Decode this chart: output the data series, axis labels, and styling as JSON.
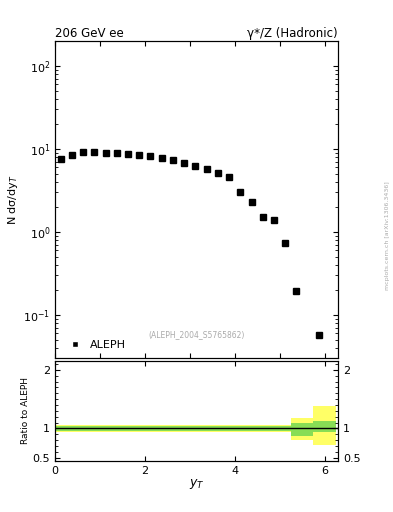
{
  "title_left": "206 GeV ee",
  "title_right": "γ*/Z (Hadronic)",
  "ylabel_main": "N dσ/dy$_T$",
  "ylabel_ratio": "Ratio to ALEPH",
  "xlabel": "$y_T$",
  "annotation": "(ALEPH_2004_S5765862)",
  "watermark": "mcplots.cern.ch [arXiv:1306.3436]",
  "legend_label": "ALEPH",
  "data_x": [
    0.125,
    0.375,
    0.625,
    0.875,
    1.125,
    1.375,
    1.625,
    1.875,
    2.125,
    2.375,
    2.625,
    2.875,
    3.125,
    3.375,
    3.625,
    3.875,
    4.125,
    4.375,
    4.625,
    4.875,
    5.125,
    5.375,
    5.875
  ],
  "data_y": [
    7.5,
    8.5,
    9.2,
    9.2,
    9.0,
    9.0,
    8.8,
    8.5,
    8.2,
    7.8,
    7.3,
    6.8,
    6.3,
    5.8,
    5.2,
    4.6,
    3.0,
    2.3,
    1.5,
    1.4,
    0.73,
    0.195,
    0.058
  ],
  "ylim_main": [
    0.03,
    200
  ],
  "ylim_ratio": [
    0.45,
    2.15
  ],
  "xlim": [
    0.0,
    6.3
  ],
  "marker_color": "black",
  "marker_size": 4,
  "ratio_line_color": "black",
  "ratio_green_color": "#88dd55",
  "ratio_yellow_color": "#ffff66",
  "background_color": "white",
  "ratio_band_data": {
    "x_edges": [
      0.0,
      4.75,
      5.25,
      5.75,
      6.25
    ],
    "green_lo": [
      0.965,
      0.965,
      0.875,
      0.94
    ],
    "green_hi": [
      1.035,
      1.035,
      1.095,
      1.12
    ],
    "yellow_lo": [
      0.935,
      0.935,
      0.8,
      0.72
    ],
    "yellow_hi": [
      1.065,
      1.065,
      1.175,
      1.38
    ]
  }
}
